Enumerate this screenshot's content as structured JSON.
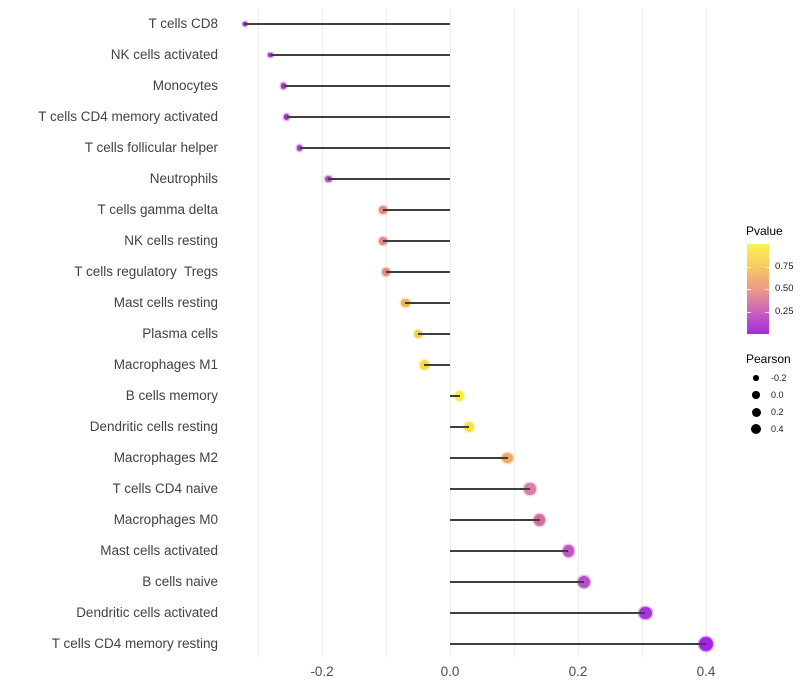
{
  "chart_data": {
    "type": "scatter",
    "subtype": "horizontal-lollipop",
    "title": "",
    "xlabel": "",
    "ylabel": "",
    "xlim": [
      -0.35,
      0.44
    ],
    "grid": "vertical-only",
    "x_gridline_values": [
      -0.3,
      -0.2,
      -0.1,
      0.0,
      0.1,
      0.2,
      0.3,
      0.4
    ],
    "x_ticks": [
      {
        "value": -0.2,
        "label": "-0.2"
      },
      {
        "value": 0.0,
        "label": "0.0"
      },
      {
        "value": 0.2,
        "label": "0.2"
      },
      {
        "value": 0.4,
        "label": "0.4"
      }
    ],
    "points": [
      {
        "label": "T cells CD8",
        "pearson": -0.32,
        "color": "#8826BD"
      },
      {
        "label": "NK cells activated",
        "pearson": -0.28,
        "color": "#9831C7"
      },
      {
        "label": "Monocytes",
        "pearson": -0.26,
        "color": "#9C36C9"
      },
      {
        "label": "T cells CD4 memory activated",
        "pearson": -0.255,
        "color": "#9B35C8"
      },
      {
        "label": "T cells follicular helper",
        "pearson": -0.235,
        "color": "#A53EC6"
      },
      {
        "label": "Neutrophils",
        "pearson": -0.19,
        "color": "#B24CC4"
      },
      {
        "label": "T cells gamma delta",
        "pearson": -0.105,
        "color": "#E0897F"
      },
      {
        "label": "NK cells resting",
        "pearson": -0.105,
        "color": "#E0897F"
      },
      {
        "label": "T cells regulatory  Tregs",
        "pearson": -0.1,
        "color": "#E18B7D"
      },
      {
        "label": "Mast cells resting",
        "pearson": -0.07,
        "color": "#EDB156"
      },
      {
        "label": "Plasma cells",
        "pearson": -0.05,
        "color": "#F3CE49"
      },
      {
        "label": "Macrophages M1",
        "pearson": -0.04,
        "color": "#F6DA42"
      },
      {
        "label": "B cells memory",
        "pearson": 0.015,
        "color": "#FAEC3C"
      },
      {
        "label": "Dendritic cells resting",
        "pearson": 0.03,
        "color": "#F8E243"
      },
      {
        "label": "Macrophages M2",
        "pearson": 0.09,
        "color": "#ECA967"
      },
      {
        "label": "T cells CD4 naive",
        "pearson": 0.125,
        "color": "#DA7FA6"
      },
      {
        "label": "Macrophages M0",
        "pearson": 0.14,
        "color": "#D26F9F"
      },
      {
        "label": "Mast cells activated",
        "pearson": 0.185,
        "color": "#C155C6"
      },
      {
        "label": "B cells naive",
        "pearson": 0.21,
        "color": "#BA4CCE"
      },
      {
        "label": "Dendritic cells activated",
        "pearson": 0.305,
        "color": "#A733DF"
      },
      {
        "label": "T cells CD4 memory resting",
        "pearson": 0.4,
        "color": "#A522EB"
      }
    ],
    "legend_pvalue": {
      "title": "Pvalue",
      "range": [
        0,
        1
      ],
      "ticks": [
        {
          "value": 0.75,
          "label": "0.75"
        },
        {
          "value": 0.5,
          "label": "0.50"
        },
        {
          "value": 0.25,
          "label": "0.25"
        }
      ],
      "gradient_stops_bottom_to_top": [
        "#A42BD6",
        "#CA62BE",
        "#EC9B85",
        "#F7C862",
        "#FBF356"
      ]
    },
    "legend_pearson": {
      "title": "Pearson",
      "dot_color": "#000000",
      "entries": [
        {
          "label": "-0.2",
          "diameter": 5.5
        },
        {
          "label": "0.0",
          "diameter": 7.5
        },
        {
          "label": "0.2",
          "diameter": 9
        },
        {
          "label": "0.4",
          "diameter": 10.5
        }
      ]
    },
    "style": {
      "stem_color": "#3F3F3F",
      "grid_color": "#ECECEC",
      "axis_text_color": "#4D4D4D",
      "category_text_color": "#424242",
      "background": "#FFFFFF"
    }
  }
}
